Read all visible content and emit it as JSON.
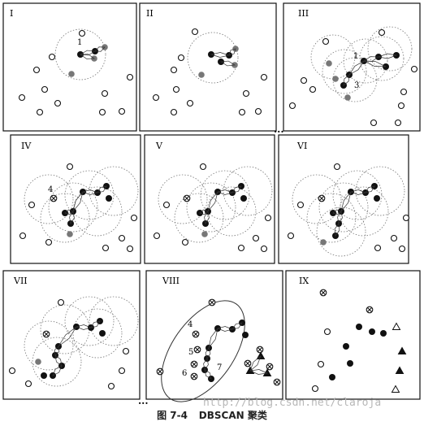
{
  "figure": {
    "caption_number": "图 7-4",
    "caption_title": "DBSCAN 聚类",
    "watermark": "http://blog.csdn.net/claroja",
    "panels": [
      {
        "id": "I",
        "label": "I"
      },
      {
        "id": "II",
        "label": "II"
      },
      {
        "id": "III",
        "label": "III"
      },
      {
        "id": "IV",
        "label": "IV"
      },
      {
        "id": "V",
        "label": "V"
      },
      {
        "id": "VI",
        "label": "VI"
      },
      {
        "id": "VII",
        "label": "VII"
      },
      {
        "id": "VIII",
        "label": "VIII"
      },
      {
        "id": "IX",
        "label": "IX"
      }
    ],
    "continuation_marks": [
      "...",
      "..."
    ],
    "point_labels": {
      "I": [
        "1"
      ],
      "III": [
        "1",
        "3"
      ],
      "IV": [
        "4"
      ],
      "VIII": [
        "4",
        "5",
        "6",
        "7"
      ]
    }
  }
}
